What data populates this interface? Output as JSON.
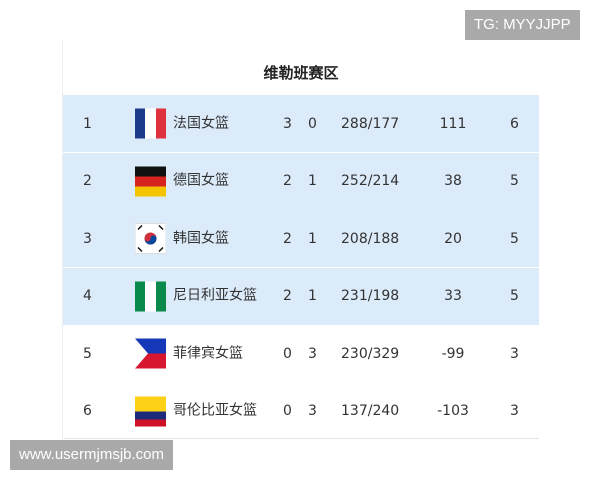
{
  "title": "维勒班赛区",
  "rows": [
    {
      "rank": "1",
      "flag": "france-flag-icon",
      "name": "法国女篮",
      "w": "3",
      "l": "0",
      "score": "288/177",
      "diff": "111",
      "pts": "6",
      "highlight": true
    },
    {
      "rank": "2",
      "flag": "germany-flag-icon",
      "name": "德国女篮",
      "w": "2",
      "l": "1",
      "score": "252/214",
      "diff": "38",
      "pts": "5",
      "highlight": true
    },
    {
      "rank": "3",
      "flag": "south-korea-flag-icon",
      "name": "韩国女篮",
      "w": "2",
      "l": "1",
      "score": "208/188",
      "diff": "20",
      "pts": "5",
      "highlight": true
    },
    {
      "rank": "4",
      "flag": "nigeria-flag-icon",
      "name": "尼日利亚女篮",
      "w": "2",
      "l": "1",
      "score": "231/198",
      "diff": "33",
      "pts": "5",
      "highlight": true
    },
    {
      "rank": "5",
      "flag": "philippines-flag-icon",
      "name": "菲律宾女篮",
      "w": "0",
      "l": "3",
      "score": "230/329",
      "diff": "-99",
      "pts": "3",
      "highlight": false
    },
    {
      "rank": "6",
      "flag": "colombia-flag-icon",
      "name": "哥伦比亚女篮",
      "w": "0",
      "l": "3",
      "score": "137/240",
      "diff": "-103",
      "pts": "3",
      "highlight": false
    }
  ],
  "colors": {
    "highlight": "#dcebfa"
  },
  "watermarks": {
    "top": "TG: MYYJJPP",
    "bottom": "www.usermjmsjb.com"
  }
}
